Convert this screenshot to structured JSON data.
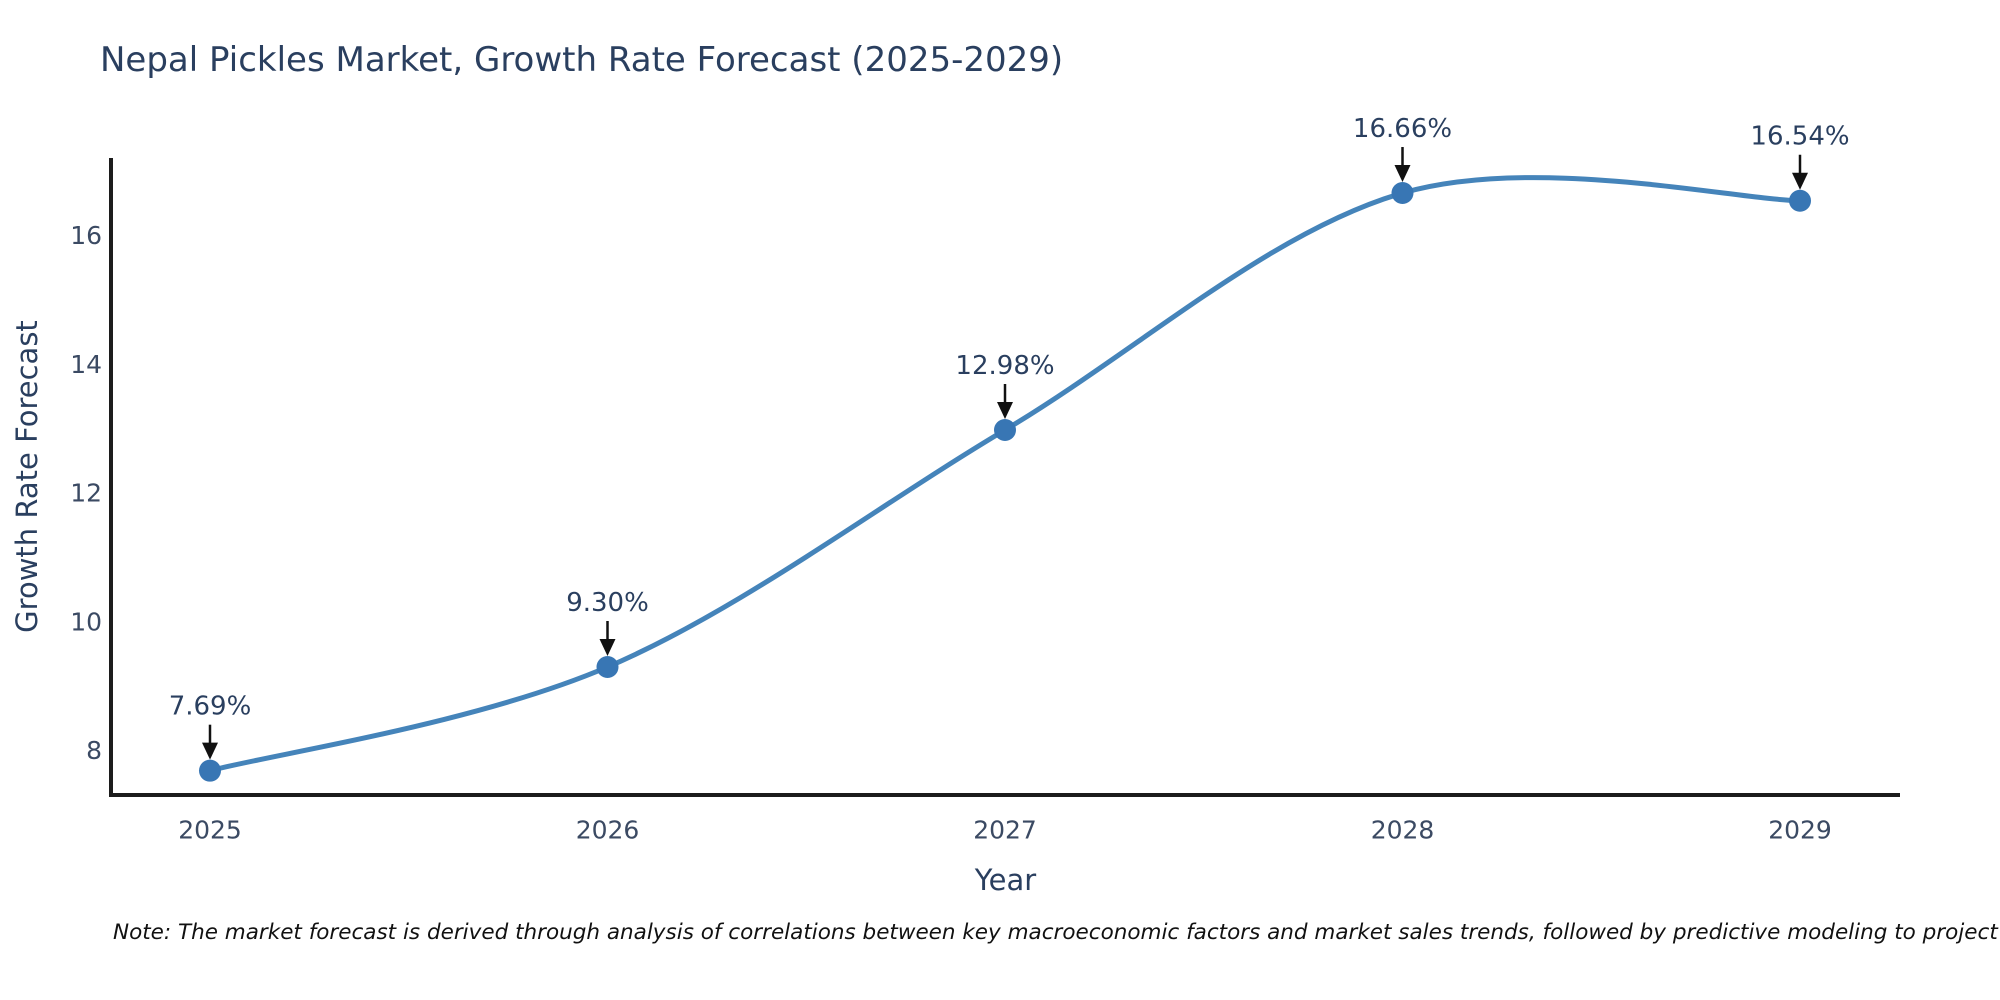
{
  "title": "Nepal Pickles Market, Growth Rate Forecast (2025-2029)",
  "note": "Note: The market forecast is derived through analysis of correlations between key macroeconomic factors and market sales trends, followed by predictive modeling to project future sales",
  "chart_data": {
    "type": "line",
    "title": "Nepal Pickles Market, Growth Rate Forecast (2025-2029)",
    "xlabel": "Year",
    "ylabel": "Growth Rate Forecast",
    "x": [
      2025,
      2026,
      2027,
      2028,
      2029
    ],
    "series": [
      {
        "name": "Growth Rate Forecast",
        "values": [
          7.69,
          9.3,
          12.98,
          16.66,
          16.54
        ],
        "point_labels": [
          "7.69%",
          "9.30%",
          "12.98%",
          "16.66%",
          "16.54%"
        ]
      }
    ],
    "yticks": [
      8,
      10,
      12,
      14,
      16
    ],
    "ylim": [
      7.3,
      17.2
    ],
    "xlim": [
      2024.75,
      2029.27
    ],
    "line_shape": "spline",
    "grid": false,
    "legend_position": "none",
    "colors": {
      "line": "#4584ba",
      "marker": "#3876b4",
      "title_text": "#2a3f5f",
      "tick_text": "#3b4a63",
      "axis_line": "#1c1c1c",
      "annotation_text": "#2a3f5f",
      "annotation_arrow": "#111111"
    }
  }
}
